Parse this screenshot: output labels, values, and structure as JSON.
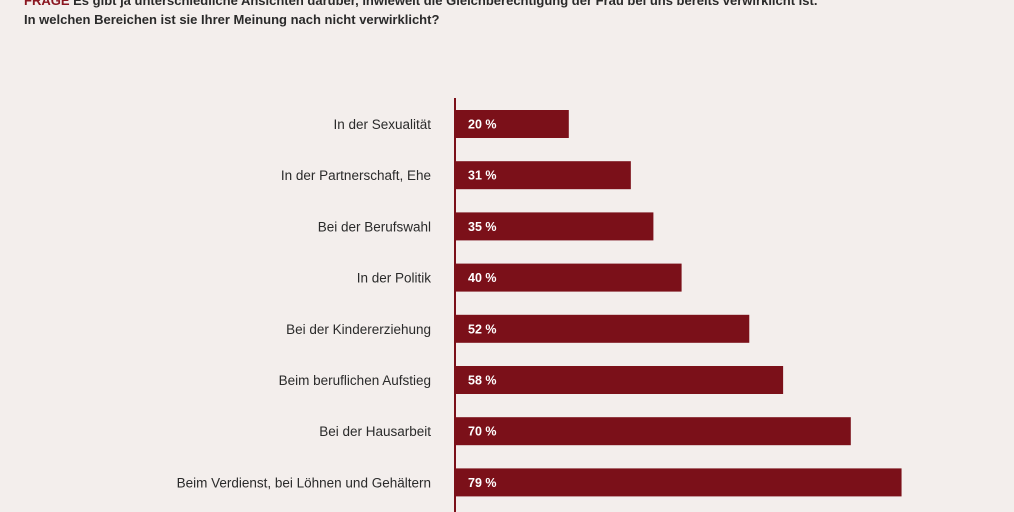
{
  "header": {
    "prefix": "FRAGE",
    "line1": "Es gibt ja unterschiedliche Ansichten darüber, inwieweit die Gleichberechtigung der Frau bei uns bereits verwirklicht ist.",
    "line2": "In welchen Bereichen ist sie Ihrer Meinung nach nicht verwirklicht?"
  },
  "chart_data": {
    "type": "bar",
    "orientation": "horizontal",
    "categories": [
      "In der Sexualität",
      "In der Partnerschaft, Ehe",
      "Bei der Berufswahl",
      "In der Politik",
      "Bei der Kindererziehung",
      "Beim beruflichen Aufstieg",
      "Bei der Hausarbeit",
      "Beim Verdienst, bei Löhnen und Gehältern"
    ],
    "values": [
      20,
      31,
      35,
      40,
      52,
      58,
      70,
      79
    ],
    "value_labels": [
      "20 %",
      "31 %",
      "35 %",
      "40 %",
      "52 %",
      "58 %",
      "70 %",
      "79 %"
    ],
    "unit": "%",
    "xlim": [
      0,
      100
    ],
    "bar_color": "#7b1019",
    "grid": false
  }
}
